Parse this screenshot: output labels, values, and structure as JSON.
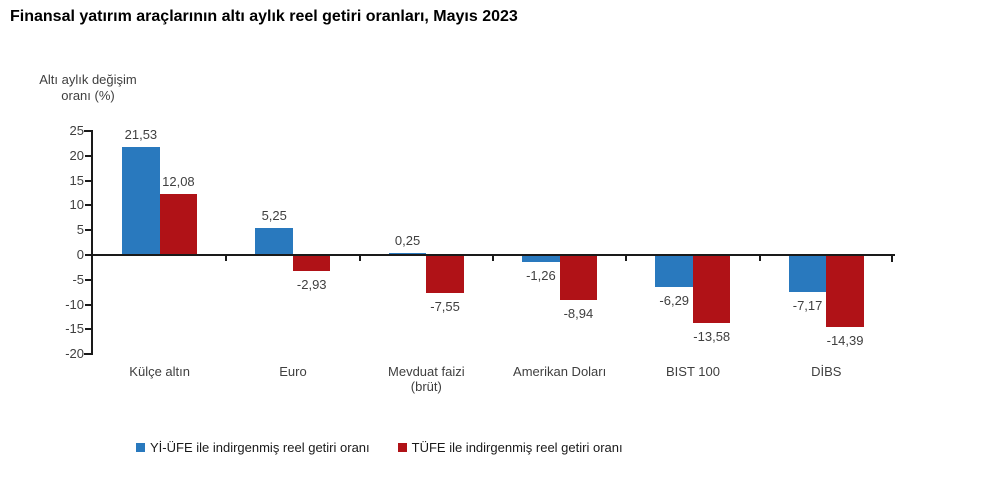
{
  "chart_data": {
    "type": "bar",
    "title": "Finansal yatırım araçlarının altı aylık reel getiri oranları, Mayıs 2023",
    "ylabel": "Altı aylık değişim oranı (%)",
    "ylabel_lines": [
      "Altı aylık değişim",
      "oranı (%)"
    ],
    "ylim": [
      -20,
      25
    ],
    "ytick_step": 5,
    "yticks": [
      25,
      20,
      15,
      10,
      5,
      0,
      -5,
      -10,
      -15,
      -20
    ],
    "grid": false,
    "legend_position": "bottom",
    "categories": [
      "Külçe altın",
      "Euro",
      "Mevduat faizi\n(brüt)",
      "Amerikan Doları",
      "BIST 100",
      "DİBS"
    ],
    "series": [
      {
        "name": "Yİ-ÜFE ile indirgenmiş reel getiri oranı",
        "color": "#2979BE",
        "values": [
          21.53,
          5.25,
          0.25,
          -1.26,
          -6.29,
          -7.17
        ],
        "value_labels": [
          "21,53",
          "5,25",
          "0,25",
          "-1,26",
          "-6,29",
          "-7,17"
        ]
      },
      {
        "name": "TÜFE ile indirgenmiş reel getiri oranı",
        "color": "#B01217",
        "values": [
          12.08,
          -2.93,
          -7.55,
          -8.94,
          -13.58,
          -14.39
        ],
        "value_labels": [
          "12,08",
          "-2,93",
          "-7,55",
          "-8,94",
          "-13,58",
          "-14,39"
        ]
      }
    ]
  }
}
